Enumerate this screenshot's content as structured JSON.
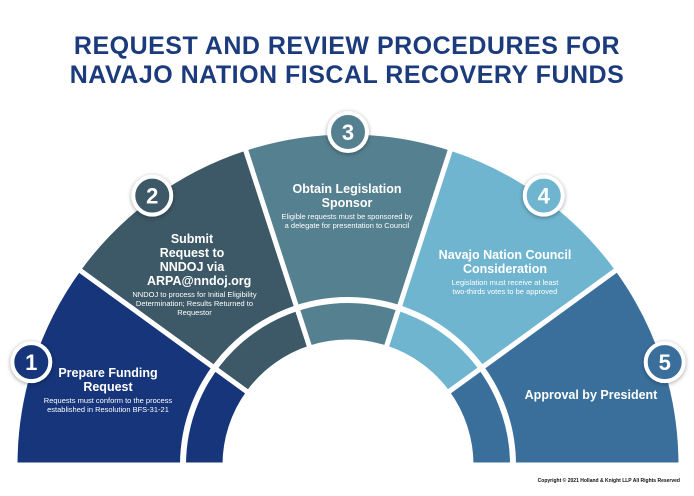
{
  "title": {
    "line1": "REQUEST AND REVIEW PROCEDURES FOR",
    "line2": "NAVAJO NATION FISCAL RECOVERY FUNDS"
  },
  "steps": [
    {
      "number": "1",
      "title": "Prepare Funding Request",
      "description": "Requests must conform to the process established in Resolution BFS-31-21",
      "color": "#17357a"
    },
    {
      "number": "2",
      "title": "Submit Request to NNDOJ via ARPA@nndoj.org",
      "description": "NNDOJ to process for Initial Eligibility Determination; Results Returned to Requestor",
      "color": "#3d5866"
    },
    {
      "number": "3",
      "title": "Obtain Legislation Sponsor",
      "description": "Eligible requests must be sponsored by a delegate for presentation to Council",
      "color": "#55808f"
    },
    {
      "number": "4",
      "title": "Navajo Nation Council Consideration",
      "description": "Legislation must receive at least two-thirds votes to be approved",
      "color": "#6fb5cf"
    },
    {
      "number": "5",
      "title": "Approval by President",
      "description": "",
      "color": "#3a6f9c"
    }
  ],
  "copyright": "Copyright © 2021 Holland & Knight LLP All Rights Reserved"
}
